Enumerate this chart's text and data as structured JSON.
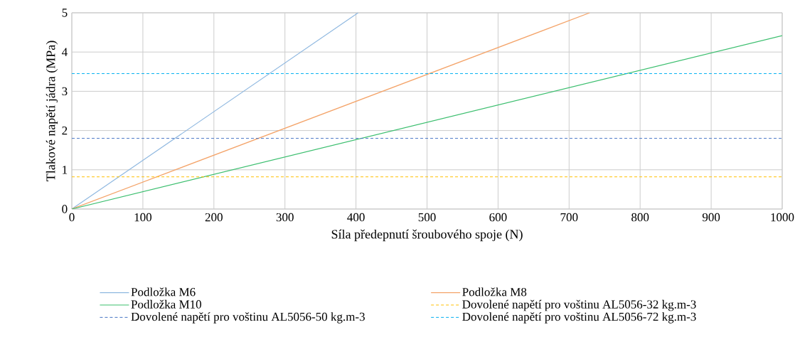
{
  "chart_data": {
    "type": "line",
    "xlabel": "Síla předepnutí šroubového spoje (N)",
    "ylabel": "Tlakové napětí jádra (MPa)",
    "xlim": [
      0,
      1000
    ],
    "ylim": [
      0,
      5
    ],
    "xticks": [
      0,
      100,
      200,
      300,
      400,
      500,
      600,
      700,
      800,
      900,
      1000
    ],
    "yticks": [
      0,
      1,
      2,
      3,
      4,
      5
    ],
    "grid": true,
    "legend": "bottom",
    "marker": "none",
    "series": [
      {
        "name": "Podložka M6",
        "color": "#8fb8e0",
        "x": [
          0,
          403
        ],
        "values": [
          0,
          5
        ]
      },
      {
        "name": "Podložka M8",
        "color": "#f4a46a",
        "x": [
          0,
          729
        ],
        "values": [
          0,
          5
        ]
      },
      {
        "name": "Podložka M10",
        "color": "#3cbf6f",
        "x": [
          0,
          1000
        ],
        "values": [
          0,
          4.42
        ]
      }
    ],
    "ref_lines": [
      {
        "axis": "y",
        "value": 0.82,
        "label": "Dovolené napětí pro voštinu AL5056-32 kg.m-3",
        "color": "#ffc000",
        "line_style": "dashed"
      },
      {
        "axis": "y",
        "value": 1.8,
        "label": "Dovolené napětí pro voštinu AL5056-50 kg.m-3",
        "color": "#4472c4",
        "line_style": "dashed"
      },
      {
        "axis": "y",
        "value": 3.45,
        "label": "Dovolené napětí pro voštinu AL5056-72 kg.m-3",
        "color": "#00b0f0",
        "line_style": "dashed"
      }
    ]
  }
}
